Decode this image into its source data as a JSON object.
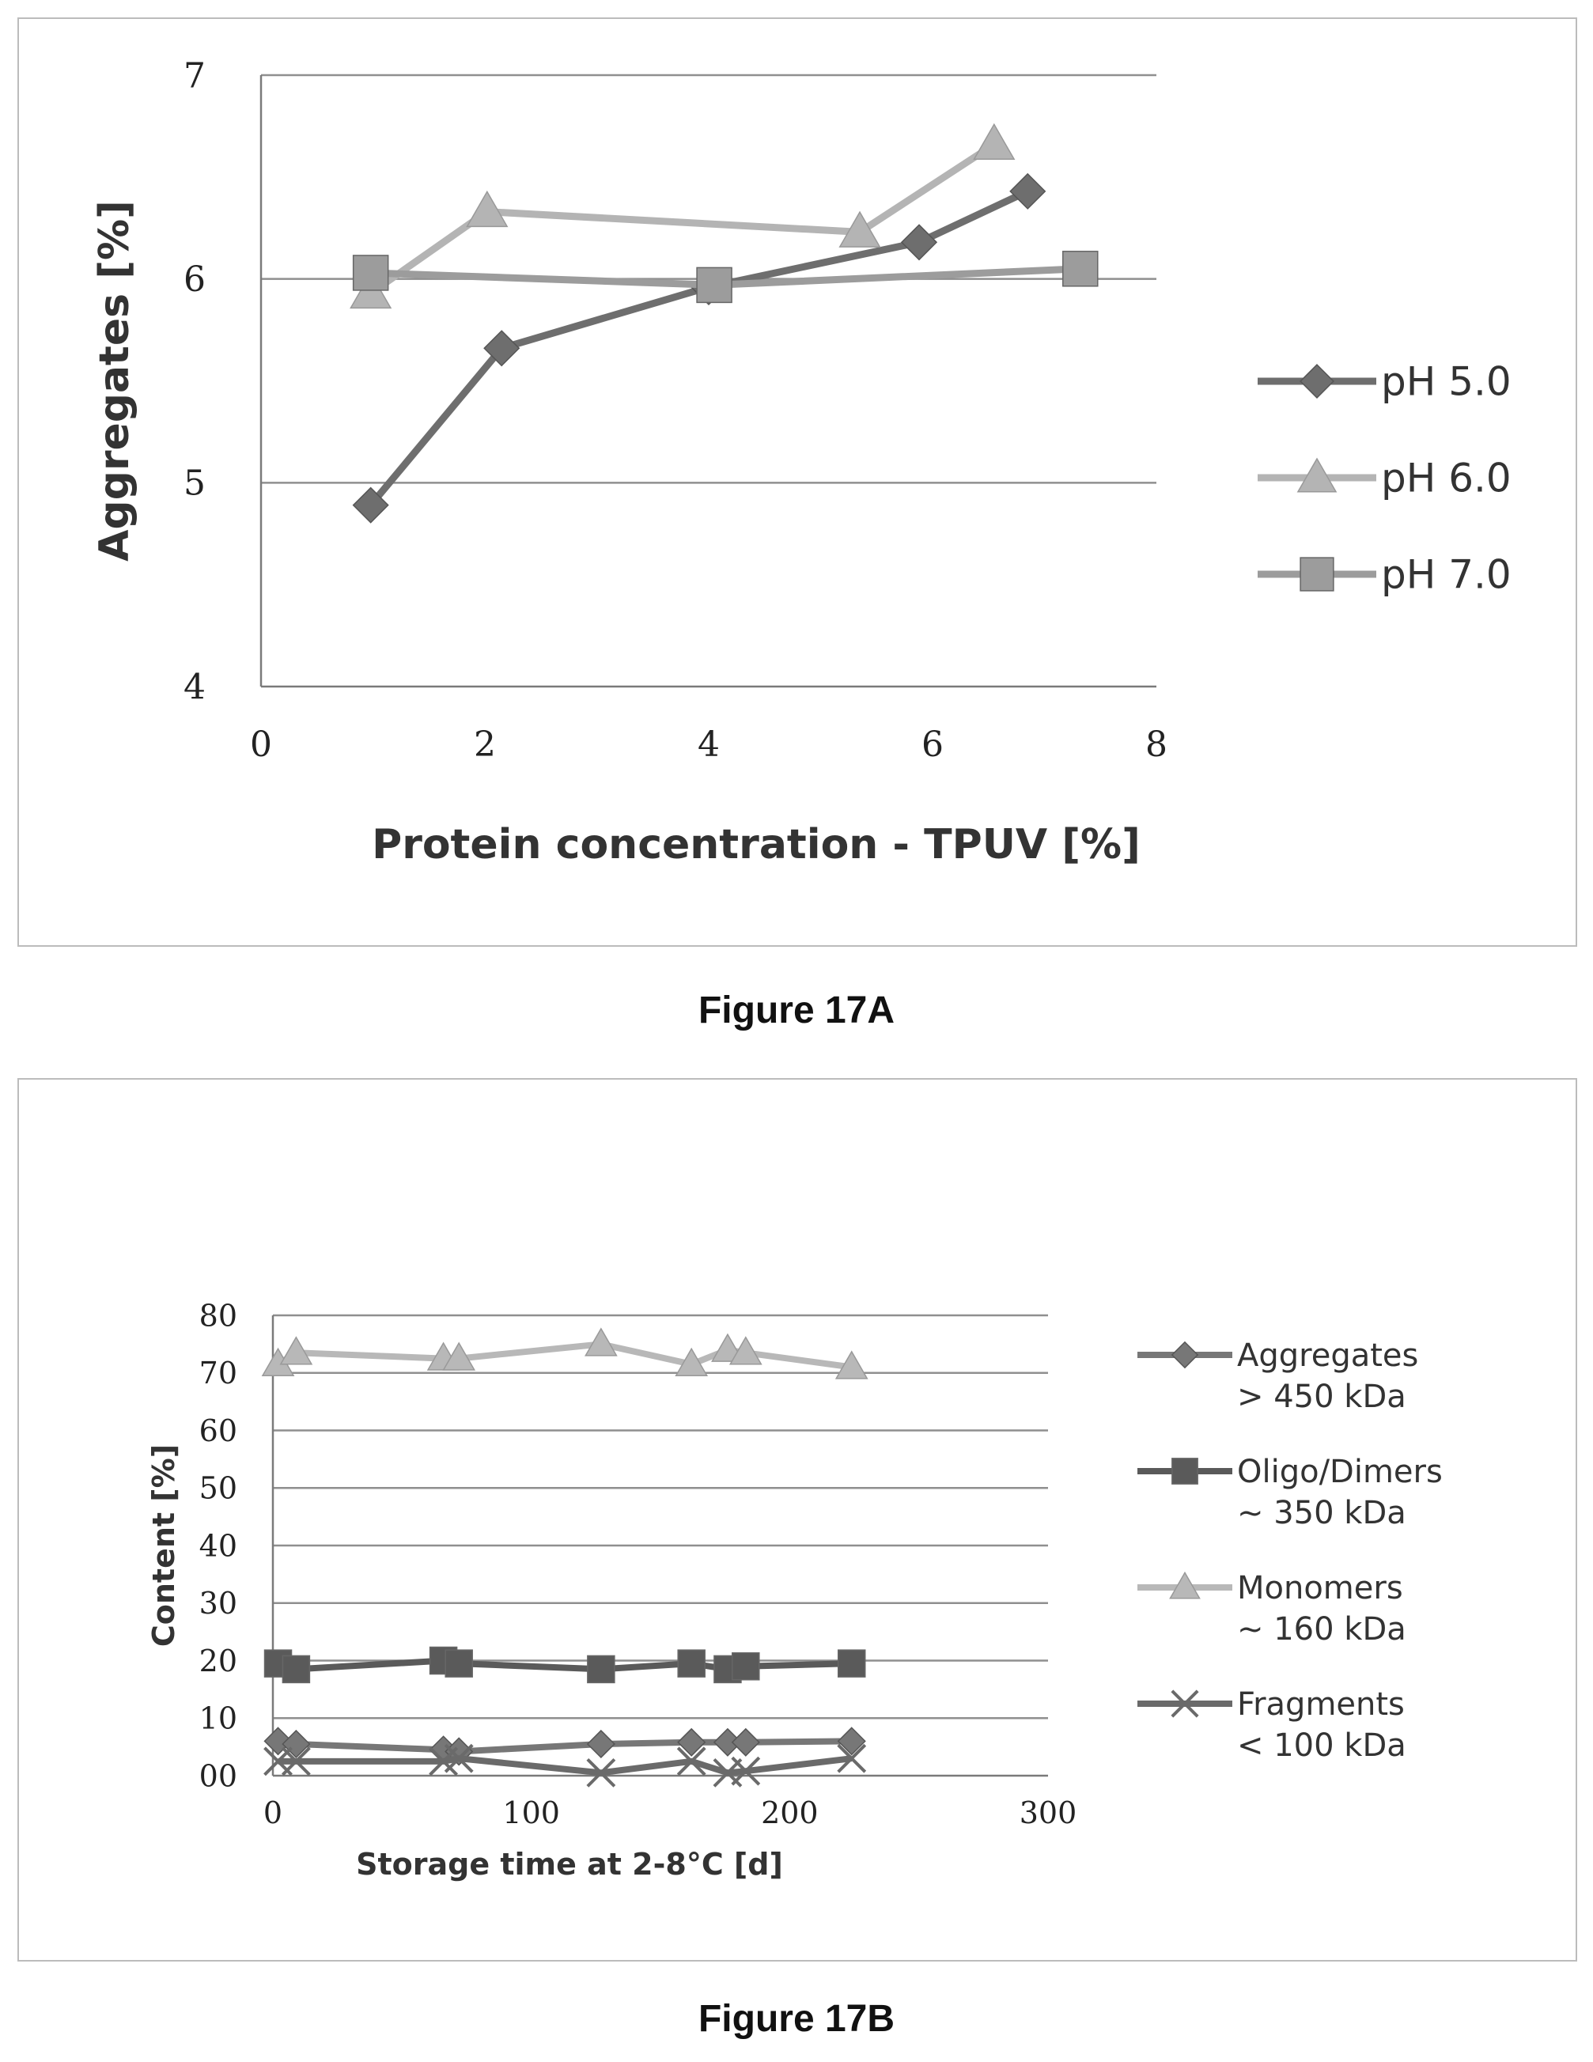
{
  "chart_data": [
    {
      "type": "line",
      "xlabel": "Protein concentration - TPUV [%]",
      "ylabel": "Aggregates [%]",
      "xlim": [
        0,
        8
      ],
      "ylim": [
        4,
        7
      ],
      "x_ticks": [
        "0",
        "2",
        "4",
        "6",
        "8"
      ],
      "y_ticks": [
        "4",
        "5",
        "6",
        "7"
      ],
      "grid": "horizontal",
      "legend_position": "right",
      "series": [
        {
          "name": "pH 5.0",
          "marker": "diamond",
          "color": "#6e6e6e",
          "x": [
            0.98,
            2.15,
            4.0,
            5.88,
            6.85
          ],
          "y": [
            4.89,
            5.66,
            5.96,
            6.18,
            6.43
          ]
        },
        {
          "name": "pH 6.0",
          "marker": "triangle",
          "color": "#b4b4b4",
          "x": [
            0.98,
            2.02,
            5.35,
            6.55
          ],
          "y": [
            5.93,
            6.33,
            6.23,
            6.66
          ]
        },
        {
          "name": "pH 7.0",
          "marker": "square",
          "color": "#9c9c9c",
          "x": [
            0.98,
            4.05,
            7.32
          ],
          "y": [
            6.03,
            5.97,
            6.05
          ]
        }
      ]
    },
    {
      "type": "line",
      "xlabel": "Storage time at 2-8°C [d]",
      "ylabel": "Content [%]",
      "xlim": [
        0,
        300
      ],
      "ylim": [
        0,
        80
      ],
      "x_ticks": [
        "0",
        "100",
        "200",
        "300"
      ],
      "y_ticks": [
        "00",
        "10",
        "20",
        "30",
        "40",
        "50",
        "60",
        "70",
        "80"
      ],
      "grid": "horizontal",
      "legend_position": "right",
      "series": [
        {
          "name": "Aggregates",
          "name_line2": "> 450 kDa",
          "marker": "diamond",
          "color": "#777777",
          "x": [
            2,
            9,
            66,
            72,
            127,
            162,
            176,
            183,
            224
          ],
          "y": [
            6,
            5.5,
            4.5,
            4.2,
            5.5,
            5.8,
            5.8,
            5.8,
            6
          ]
        },
        {
          "name": "Oligo/Dimers",
          "name_line2": "~ 350 kDa",
          "marker": "square",
          "color": "#5a5a5a",
          "x": [
            2,
            9,
            66,
            72,
            127,
            162,
            176,
            183,
            224
          ],
          "y": [
            19.5,
            18.5,
            20,
            19.5,
            18.5,
            19.5,
            18.5,
            19,
            19.5
          ]
        },
        {
          "name": "Monomers",
          "name_line2": "~ 160 kDa",
          "marker": "triangle",
          "color": "#b8b8b8",
          "x": [
            2,
            9,
            66,
            72,
            127,
            162,
            176,
            183,
            224
          ],
          "y": [
            71.5,
            73.5,
            72.5,
            72.5,
            75,
            71.5,
            74,
            73.5,
            71
          ]
        },
        {
          "name": "Fragments",
          "name_line2": "< 100 kDa",
          "marker": "x",
          "color": "#6a6a6a",
          "x": [
            2,
            9,
            66,
            72,
            127,
            162,
            176,
            183,
            224
          ],
          "y": [
            2.5,
            2.5,
            2.5,
            3,
            0.5,
            2.5,
            0.5,
            0.8,
            3
          ]
        }
      ]
    }
  ],
  "captions": {
    "a": "Figure 17A",
    "b": "Figure 17B"
  }
}
